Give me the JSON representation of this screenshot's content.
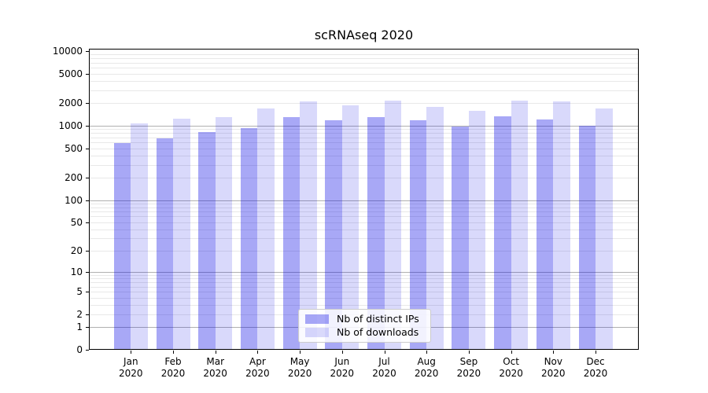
{
  "figure": {
    "title": "scRNAseq 2020"
  },
  "chart_data": {
    "type": "bar",
    "title": "scRNAseq 2020",
    "categories": [
      "Jan",
      "Feb",
      "Mar",
      "Apr",
      "May",
      "Jun",
      "Jul",
      "Aug",
      "Sep",
      "Oct",
      "Nov",
      "Dec"
    ],
    "category_year": "2020",
    "series": [
      {
        "name": "Nb of distinct IPs",
        "values": [
          580,
          680,
          820,
          920,
          1320,
          1190,
          1320,
          1170,
          970,
          1340,
          1220,
          990
        ]
      },
      {
        "name": "Nb of downloads",
        "values": [
          1080,
          1250,
          1300,
          1700,
          2100,
          1880,
          2150,
          1790,
          1600,
          2180,
          2120,
          1710
        ]
      }
    ],
    "xlabel": "",
    "ylabel": "",
    "yscale": "log1p",
    "ylim": [
      0,
      10000
    ],
    "y_ticks": [
      0,
      1,
      2,
      5,
      10,
      20,
      50,
      100,
      200,
      500,
      1000,
      2000,
      5000,
      10000
    ],
    "grid": {
      "major_at": [
        1,
        10,
        100,
        1000
      ],
      "minor": "n x 10^k for n=2..9, k=0..3",
      "orientation": "horizontal"
    },
    "legend_position": "lower center"
  },
  "colors": {
    "bar_distinct_ips": "rgba(0,0,230,0.34)",
    "bar_downloads": "rgba(0,0,230,0.15)",
    "grid_major": "#b0b0b0",
    "grid_minor": "#e8e8e8",
    "axis": "#000000",
    "legend_border": "#cccccc",
    "background": "#ffffff",
    "text": "#000000"
  }
}
